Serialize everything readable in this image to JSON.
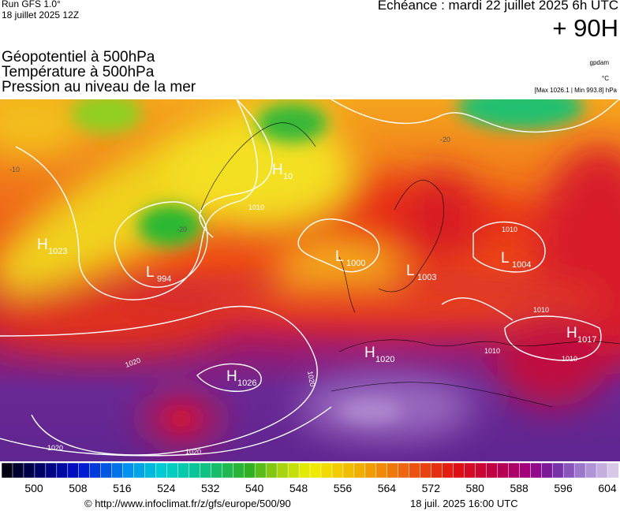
{
  "header": {
    "run": "Run GFS 1.0°",
    "run_date": "18 juillet 2025 12Z",
    "valid": "Echéance : mardi 22 juillet 2025 6h UTC",
    "lead": "+ 90H",
    "layers": [
      "Géopotentiel à 500hPa",
      "Température à 500hPa",
      "Pression au niveau de la mer"
    ],
    "units": [
      "gpdam",
      "°C",
      "[Max 1026.1 | Min 993.8] hPa"
    ]
  },
  "map": {
    "pressure_centers": [
      {
        "kind": "H",
        "value": "1023"
      },
      {
        "kind": "L",
        "value": "994"
      },
      {
        "kind": "H",
        "value": "1026"
      },
      {
        "kind": "H",
        "value": "10"
      },
      {
        "kind": "L",
        "value": "1000"
      },
      {
        "kind": "L",
        "value": "1003"
      },
      {
        "kind": "L",
        "value": "1004"
      },
      {
        "kind": "H",
        "value": "1020"
      },
      {
        "kind": "H",
        "value": "1017"
      }
    ],
    "contour_labels": [
      "1010",
      "1010",
      "1020",
      "1020",
      "1020",
      "1020",
      "1010",
      "1010",
      "1010",
      "-20",
      "-20",
      "-10"
    ]
  },
  "colorbar": {
    "ticks": [
      500,
      508,
      516,
      524,
      532,
      540,
      548,
      556,
      564,
      572,
      580,
      588,
      596,
      604
    ]
  },
  "footer": {
    "url": "© http://www.infoclimat.fr/z/gfs/europe/500/90",
    "timestamp": "18 juil. 2025 16:00 UTC"
  }
}
